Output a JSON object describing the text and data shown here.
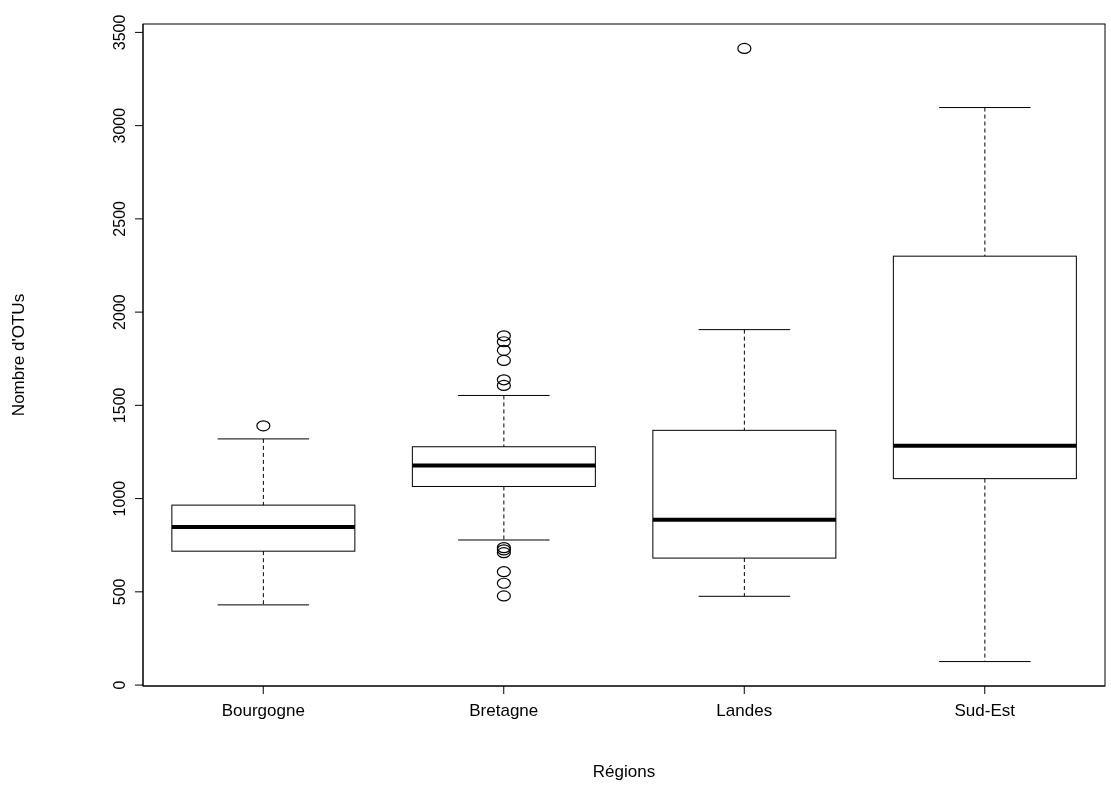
{
  "chart_data": {
    "type": "box",
    "xlabel": "Régions",
    "ylabel": "Nombre d'OTUs",
    "categories": [
      "Bourgogne",
      "Bretagne",
      "Landes",
      "Sud-Est"
    ],
    "boxes": [
      {
        "low": 430,
        "q1": 718,
        "median": 848,
        "q3": 965,
        "high": 1320,
        "outliers": [
          1390
        ]
      },
      {
        "low": 778,
        "q1": 1065,
        "median": 1177,
        "q3": 1278,
        "high": 1553,
        "outliers": [
          1873,
          1841,
          1795,
          1741,
          1637,
          1607,
          737,
          725,
          710,
          608,
          546,
          478
        ]
      },
      {
        "low": 476,
        "q1": 681,
        "median": 886,
        "q3": 1366,
        "high": 1906,
        "outliers": [
          3414
        ]
      },
      {
        "low": 126,
        "q1": 1107,
        "median": 1284,
        "q3": 2300,
        "high": 3097
      }
    ],
    "ylim": [
      -5,
      3545
    ],
    "yticks": [
      0,
      500,
      1000,
      1500,
      2000,
      2500,
      3000,
      3500
    ]
  }
}
